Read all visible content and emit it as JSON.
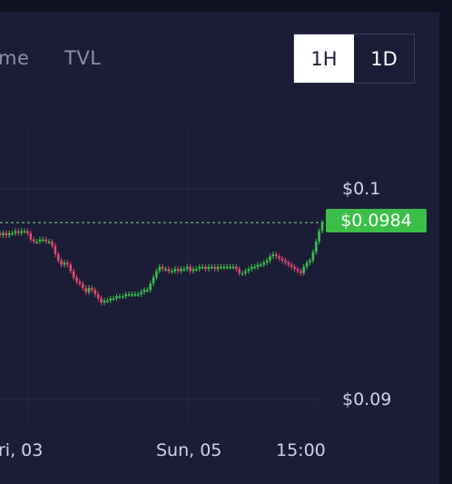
{
  "tabs": {
    "volume_label": "me",
    "tvl_label": "TVL"
  },
  "intervals": {
    "options": [
      "1H",
      "1D"
    ],
    "selected": "1H"
  },
  "price_axis": {
    "top_tick": "$0.1",
    "bottom_tick": "$0.09"
  },
  "current_price": "$0.0984",
  "time_axis": {
    "labels": [
      "ri, 03",
      "Sun, 05",
      "15:00"
    ]
  },
  "colors": {
    "background": "#1b1c35",
    "up_candle": "#3cbf49",
    "down_candle": "#e0486e",
    "price_badge": "#3cbf49",
    "active_interval_bg": "#ffffff"
  },
  "chart_data": {
    "type": "candlestick",
    "y_unit": "$",
    "yaxis_ticks": [
      0.1,
      0.09
    ],
    "last_price": 0.0984,
    "x_ticks": [
      "ri, 03",
      "Sun, 05",
      "15:00"
    ],
    "close_series": [
      0.0978,
      0.0979,
      0.0978,
      0.0979,
      0.0979,
      0.098,
      0.0979,
      0.098,
      0.098,
      0.0979,
      0.0976,
      0.0975,
      0.0975,
      0.0976,
      0.0976,
      0.0975,
      0.0975,
      0.0973,
      0.0969,
      0.0966,
      0.0964,
      0.0965,
      0.0964,
      0.0961,
      0.0958,
      0.0956,
      0.0955,
      0.0953,
      0.0951,
      0.0953,
      0.0952,
      0.095,
      0.0948,
      0.0946,
      0.0947,
      0.0947,
      0.0948,
      0.0948,
      0.0949,
      0.0949,
      0.0949,
      0.095,
      0.095,
      0.095,
      0.095,
      0.095,
      0.0951,
      0.0952,
      0.0952,
      0.0955,
      0.0958,
      0.0961,
      0.0963,
      0.0962,
      0.0962,
      0.0961,
      0.0961,
      0.0962,
      0.0961,
      0.0962,
      0.0962,
      0.0963,
      0.0961,
      0.0962,
      0.0962,
      0.0963,
      0.0963,
      0.0962,
      0.0963,
      0.0963,
      0.0962,
      0.0963,
      0.0963,
      0.0963,
      0.0963,
      0.0963,
      0.0963,
      0.0962,
      0.096,
      0.096,
      0.0961,
      0.0962,
      0.0963,
      0.0963,
      0.0964,
      0.0964,
      0.0965,
      0.0966,
      0.0968,
      0.0969,
      0.0968,
      0.0967,
      0.0966,
      0.0965,
      0.0964,
      0.0963,
      0.0962,
      0.0961,
      0.096,
      0.0963,
      0.0965,
      0.0966,
      0.097,
      0.0975,
      0.098,
      0.0984
    ]
  }
}
